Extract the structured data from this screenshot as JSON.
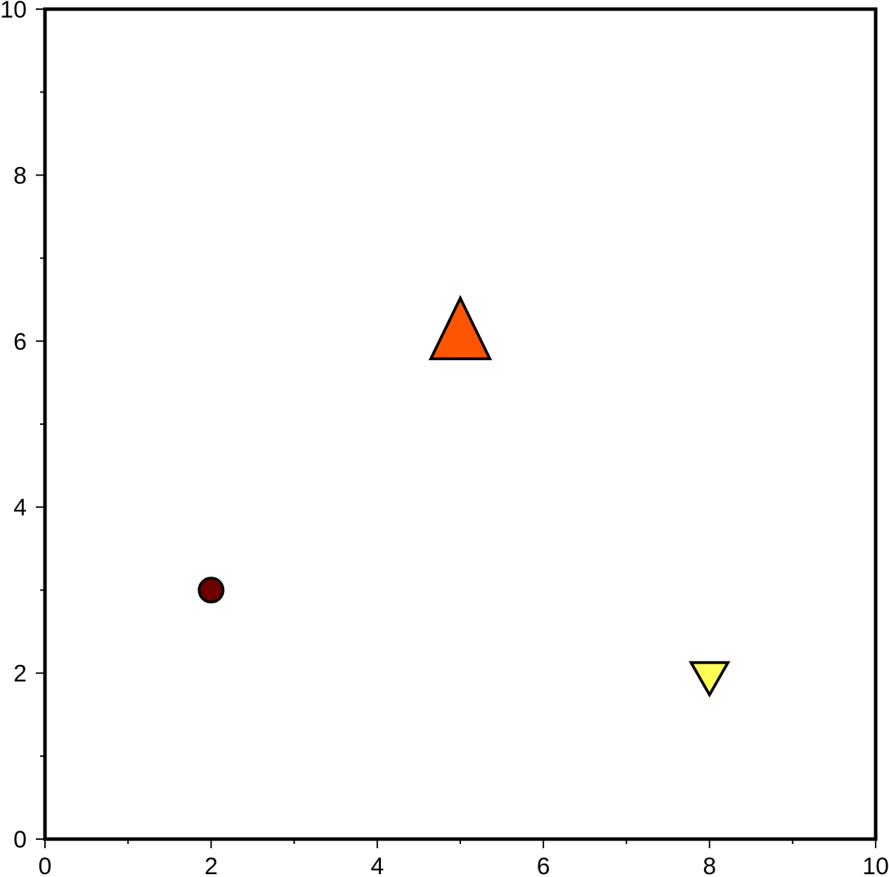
{
  "chart_data": {
    "type": "scatter",
    "title": "",
    "xlabel": "",
    "ylabel": "",
    "xlim": [
      0,
      10
    ],
    "ylim": [
      0,
      10
    ],
    "grid": false,
    "x_major_ticks": [
      0,
      2,
      4,
      6,
      8,
      10
    ],
    "x_minor_ticks": [
      1,
      3,
      5,
      7,
      9
    ],
    "y_major_ticks": [
      0,
      2,
      4,
      6,
      8,
      10
    ],
    "y_minor_ticks": [
      1,
      3,
      5,
      7,
      9
    ],
    "x_tick_labels": [
      "0",
      "2",
      "4",
      "6",
      "8",
      "10"
    ],
    "y_tick_labels": [
      "0",
      "2",
      "4",
      "6",
      "8",
      "10"
    ],
    "points": [
      {
        "x": 2,
        "y": 3,
        "shape": "circle",
        "size": 1,
        "color": "#6e0000"
      },
      {
        "x": 5,
        "y": 6,
        "shape": "triangle-up",
        "size": 2,
        "color": "#ff5500"
      },
      {
        "x": 8,
        "y": 2,
        "shape": "triangle-down",
        "size": 1.4,
        "color": "#ffff55"
      }
    ]
  }
}
